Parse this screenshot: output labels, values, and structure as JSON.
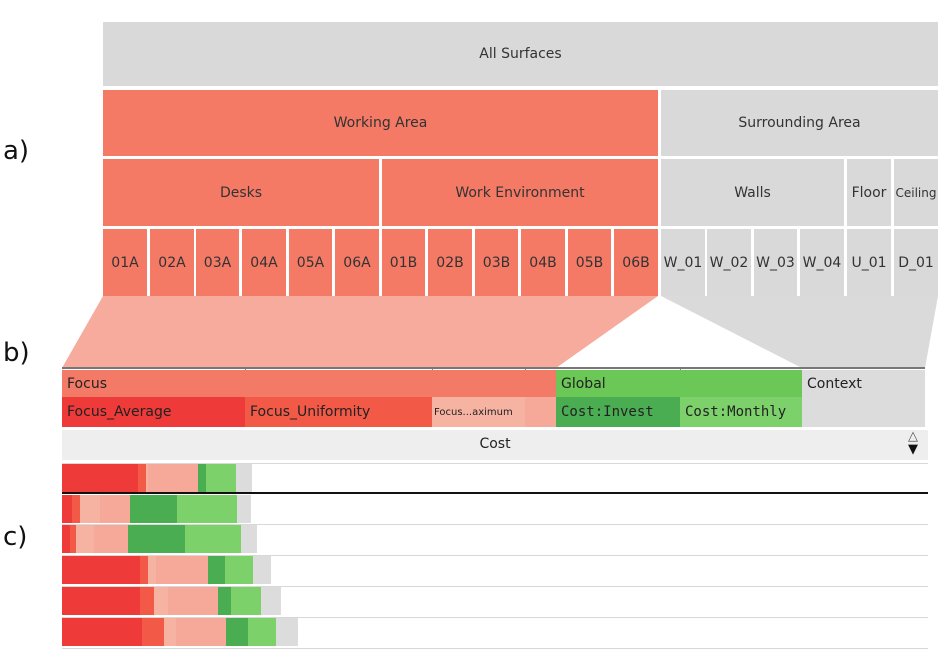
{
  "panel_labels": {
    "a": "a)",
    "b": "b)",
    "c": "c)"
  },
  "hierarchy": {
    "root": "All Surfaces",
    "level1": [
      "Working Area",
      "Surrounding Area"
    ],
    "level2": [
      "Desks",
      "Work Environment",
      "Walls",
      "Floor",
      "Ceiling"
    ],
    "leaves": [
      "01A",
      "02A",
      "03A",
      "04A",
      "05A",
      "06A",
      "01B",
      "02B",
      "03B",
      "04B",
      "05B",
      "06B",
      "W_01",
      "W_02",
      "W_03",
      "W_04",
      "U_01",
      "D_01"
    ]
  },
  "criteria_header": {
    "groups": [
      "Focus",
      "Global",
      "Context"
    ],
    "subs": [
      "Focus_Average",
      "Focus_Uniformity",
      "Focus...aximum",
      "Cost:Invest",
      "Cost:Monthly"
    ],
    "sort_label": "Cost"
  },
  "colors": {
    "red_area": "#f47a66",
    "grey_area": "#d9d9d9",
    "focus_group": "#f37a66",
    "focus_average": "#ef3a3a",
    "focus_uniformity": "#f25a47",
    "focus_max": "#f7b3a2",
    "focus_extra": "#f6a899",
    "global_group": "#6cc856",
    "cost_invest": "#4aad52",
    "cost_monthly": "#7dd16a",
    "context": "#dcdcdc"
  },
  "chart_data": {
    "type": "stacked-bar",
    "segments": [
      "Focus_Average",
      "Focus_Uniformity",
      "Focus...aximum",
      "Focus extra",
      "Cost:Invest",
      "Cost:Monthly",
      "Context"
    ],
    "rows": [
      [
        76,
        8,
        2,
        50,
        8,
        30,
        16
      ],
      [
        10,
        8,
        20,
        30,
        47,
        60,
        14
      ],
      [
        8,
        6,
        18,
        34,
        57,
        56,
        16
      ],
      [
        78,
        8,
        8,
        52,
        17,
        28,
        18
      ],
      [
        78,
        14,
        14,
        50,
        13,
        30,
        20
      ],
      [
        80,
        22,
        12,
        50,
        22,
        28,
        22
      ]
    ],
    "highlight_row": 0
  }
}
